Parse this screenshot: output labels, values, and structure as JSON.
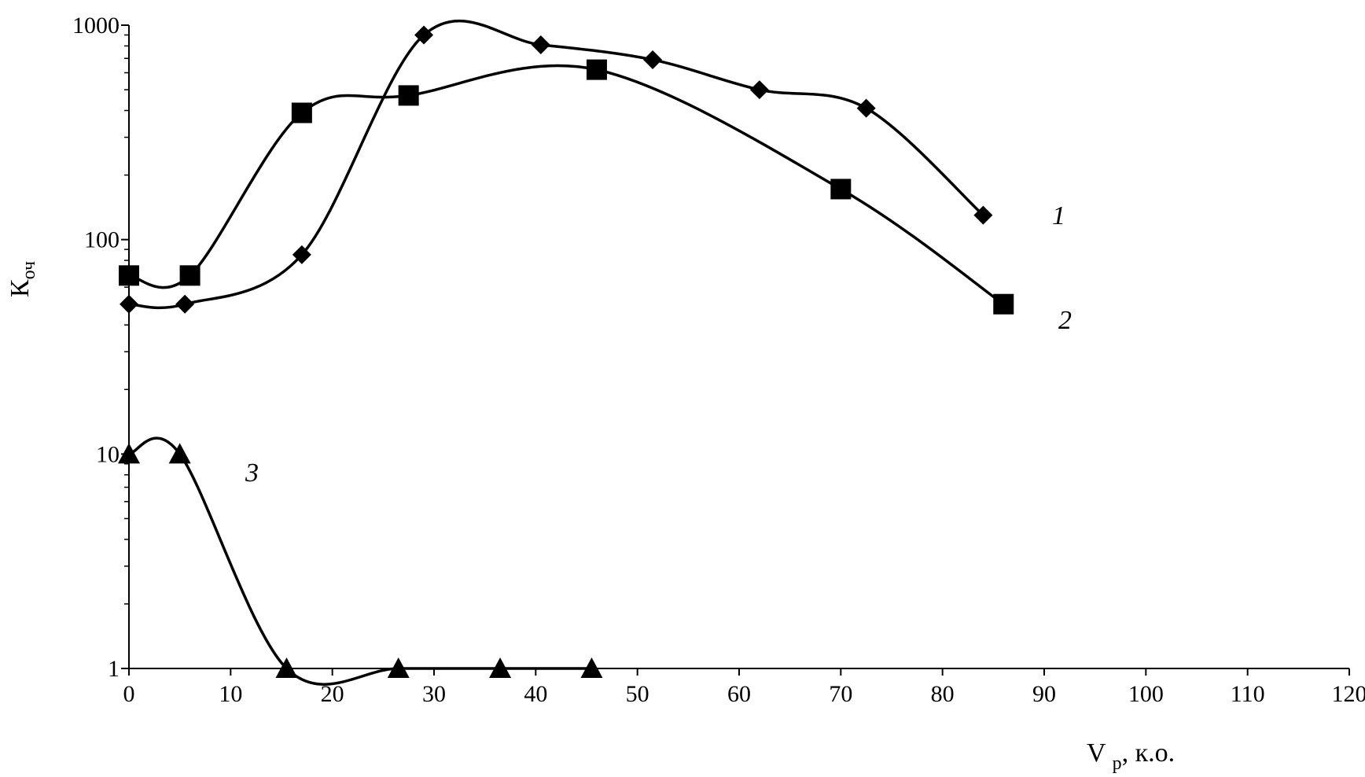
{
  "chart_data": {
    "type": "line",
    "ylog": true,
    "xlim": [
      0,
      120
    ],
    "ylim": [
      1,
      1000
    ],
    "xticks": [
      0,
      10,
      20,
      30,
      40,
      50,
      60,
      70,
      80,
      90,
      100,
      110,
      120
    ],
    "yticks": [
      1,
      10,
      100,
      1000
    ],
    "xlabel": {
      "main": "V",
      "sub": "р",
      "suffix": ", к.о."
    },
    "ylabel": {
      "main": "К",
      "sub": "оч"
    },
    "grid": false,
    "series": [
      {
        "name": "1",
        "marker": "diamond",
        "x": [
          0,
          5.5,
          17,
          29,
          40.5,
          51.5,
          62,
          72.5,
          84
        ],
        "y": [
          50,
          50,
          85,
          900,
          810,
          690,
          500,
          410,
          130
        ]
      },
      {
        "name": "2",
        "marker": "square",
        "x": [
          0,
          6,
          17,
          27.5,
          46,
          70,
          86
        ],
        "y": [
          68,
          68,
          390,
          470,
          620,
          172,
          50
        ]
      },
      {
        "name": "3",
        "marker": "triangle",
        "x": [
          0,
          5,
          15.5,
          26.5,
          36.5,
          45.5
        ],
        "y": [
          10,
          10,
          1,
          1,
          1,
          1
        ]
      }
    ]
  }
}
